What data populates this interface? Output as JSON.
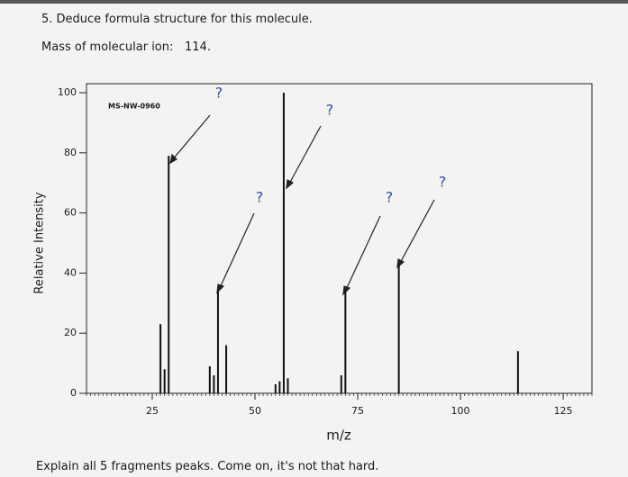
{
  "question": "5. Deduce formula structure for this molecule.",
  "mass_label": "Mass of molecular ion:",
  "mass_value": "114.",
  "footer": "Explain all 5 fragments peaks. Come on, it's not that hard.",
  "chart_data": {
    "type": "bar",
    "inner_label": "MS-NW-0960",
    "x_label": "m/z",
    "y_label": "Relative Intensity",
    "x": [
      27,
      28,
      29,
      39,
      40,
      41,
      43,
      55,
      56,
      57,
      58,
      71,
      72,
      85,
      114
    ],
    "values": [
      23,
      8,
      79,
      9,
      6,
      34,
      16,
      3,
      4,
      100,
      5,
      6,
      34,
      43,
      14
    ],
    "color": "#111111",
    "xlim": [
      9,
      132
    ],
    "ylim": [
      0,
      103
    ],
    "xticks": [
      25,
      50,
      75,
      100,
      125
    ],
    "yticks": [
      0,
      20,
      40,
      60,
      80,
      100
    ],
    "annotations": [
      "?",
      "?",
      "?",
      "?",
      "?"
    ]
  }
}
